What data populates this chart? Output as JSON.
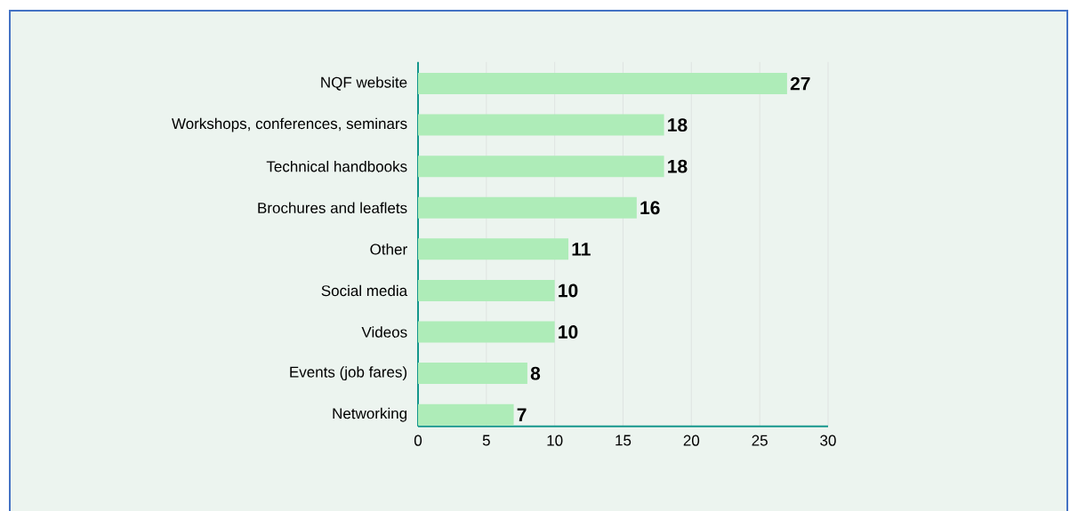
{
  "chart_data": {
    "type": "bar",
    "orientation": "horizontal",
    "categories": [
      "NQF website",
      "Workshops, conferences, seminars",
      "Technical handbooks",
      "Brochures and leaflets",
      "Other",
      "Social media",
      "Videos",
      "Events (job fares)",
      "Networking"
    ],
    "values": [
      27,
      18,
      18,
      16,
      11,
      10,
      10,
      8,
      7
    ],
    "color": "#aeecb8",
    "xlim": [
      0,
      30
    ],
    "xticks": [
      0,
      5,
      10,
      15,
      20,
      25,
      30
    ],
    "grid": "x",
    "data_labels": true
  }
}
